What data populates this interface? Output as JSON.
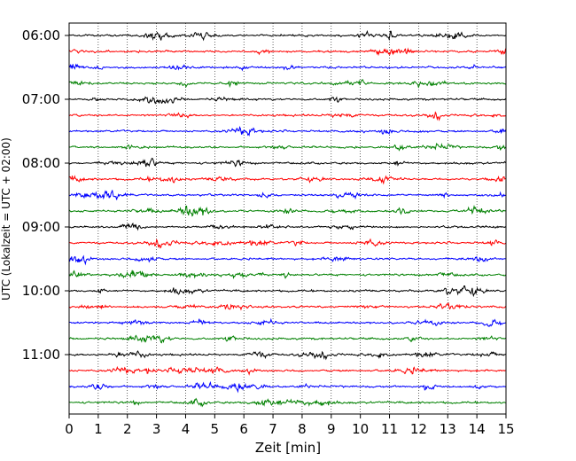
{
  "chart_data": {
    "type": "line",
    "title": "",
    "xlabel": "Zeit  [min]",
    "ylabel": "UTC (Lokalzeit = UTC + 02:00)",
    "xlim": [
      0,
      15
    ],
    "x_ticks": [
      0,
      1,
      2,
      3,
      4,
      5,
      6,
      7,
      8,
      9,
      10,
      11,
      12,
      13,
      14,
      15
    ],
    "x_tick_labels": [
      "0",
      "1",
      "2",
      "3",
      "4",
      "5",
      "6",
      "7",
      "8",
      "9",
      "10",
      "11",
      "12",
      "13",
      "14",
      "15"
    ],
    "y_ticks": [
      "06:00",
      "07:00",
      "08:00",
      "09:00",
      "10:00",
      "11:00"
    ],
    "grid": "vertical dotted",
    "trace_interval_min": 15,
    "trace_colors": [
      "#000000",
      "#ff0000",
      "#0000ff",
      "#008000"
    ],
    "traces": [
      {
        "start": "06:00"
      },
      {
        "start": "06:15"
      },
      {
        "start": "06:30"
      },
      {
        "start": "06:45"
      },
      {
        "start": "07:00"
      },
      {
        "start": "07:15"
      },
      {
        "start": "07:30"
      },
      {
        "start": "07:45"
      },
      {
        "start": "08:00"
      },
      {
        "start": "08:15"
      },
      {
        "start": "08:30"
      },
      {
        "start": "08:45"
      },
      {
        "start": "09:00"
      },
      {
        "start": "09:15"
      },
      {
        "start": "09:30"
      },
      {
        "start": "09:45"
      },
      {
        "start": "10:00"
      },
      {
        "start": "10:15"
      },
      {
        "start": "10:30"
      },
      {
        "start": "10:45"
      },
      {
        "start": "11:00"
      },
      {
        "start": "11:15"
      },
      {
        "start": "11:30"
      },
      {
        "start": "11:45"
      }
    ]
  }
}
